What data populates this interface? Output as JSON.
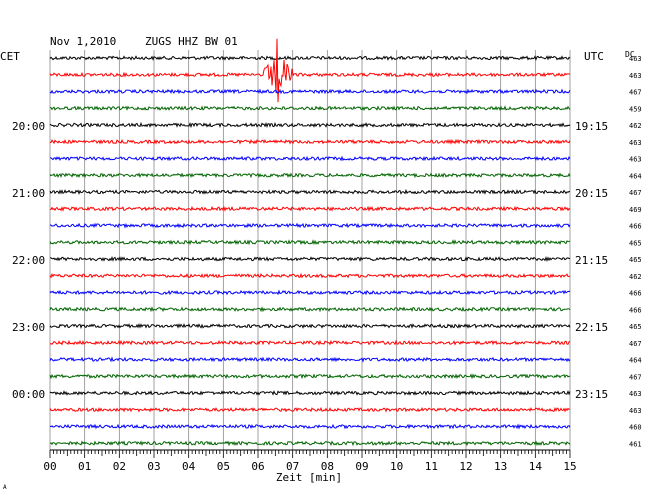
{
  "header": {
    "date": "Nov 1,2010",
    "station": "ZUGS HHZ BW 01",
    "left_tz": "CET",
    "right_tz": "UTC",
    "dc_label": "DC"
  },
  "chart_data": {
    "type": "line",
    "title": "Nov 1,2010   ZUGS HHZ BW 01",
    "xlabel": "Zeit [min]",
    "xlim": [
      0,
      15
    ],
    "x_ticks": [
      "00",
      "01",
      "02",
      "03",
      "04",
      "05",
      "06",
      "07",
      "08",
      "09",
      "10",
      "11",
      "12",
      "13",
      "14",
      "15"
    ],
    "grid": true,
    "trace_colors": [
      "#000000",
      "#ff0000",
      "#0000ff",
      "#006400"
    ],
    "left_time_labels": [
      {
        "trace": 4,
        "label": "20:00"
      },
      {
        "trace": 8,
        "label": "21:00"
      },
      {
        "trace": 12,
        "label": "22:00"
      },
      {
        "trace": 16,
        "label": "23:00"
      },
      {
        "trace": 20,
        "label": "00:00"
      }
    ],
    "right_time_labels": [
      {
        "trace": 4,
        "label": "19:15"
      },
      {
        "trace": 8,
        "label": "20:15"
      },
      {
        "trace": 12,
        "label": "21:15"
      },
      {
        "trace": 16,
        "label": "22:15"
      },
      {
        "trace": 20,
        "label": "23:15"
      }
    ],
    "dc_offsets": [
      "463",
      "463",
      "467",
      "459",
      "462",
      "463",
      "463",
      "464",
      "467",
      "469",
      "466",
      "465",
      "465",
      "462",
      "466",
      "466",
      "465",
      "467",
      "464",
      "467",
      "463",
      "463",
      "460",
      "461"
    ],
    "event": {
      "trace": 1,
      "start_min": 6.1,
      "peak_min": 6.55,
      "end_min": 7.0
    }
  },
  "footer": {
    "corner_mark": "A"
  }
}
